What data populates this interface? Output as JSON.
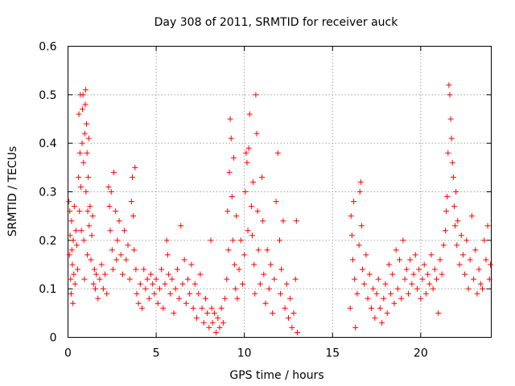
{
  "chart_data": {
    "type": "scatter",
    "title": "Day 308 of 2011, SRMTID for receiver auck",
    "xlabel": "GPS time / hours",
    "ylabel": "SRMTID / TECUs",
    "xlim": [
      0,
      24
    ],
    "ylim": [
      0,
      0.6
    ],
    "x_ticks": [
      0,
      5,
      10,
      15,
      20
    ],
    "x_tick_labels": [
      "0",
      "5",
      "10",
      "15",
      "20"
    ],
    "y_ticks": [
      0,
      0.1,
      0.2,
      0.3,
      0.4,
      0.5,
      0.6
    ],
    "y_tick_labels": [
      "0",
      "0.1",
      "0.2",
      "0.3",
      "0.4",
      "0.5",
      "0.6"
    ],
    "grid": true,
    "marker": "plus",
    "color": "#ff0000",
    "series": [
      {
        "name": "SRMTID",
        "points": [
          [
            0.05,
            0.28
          ],
          [
            0.08,
            0.17
          ],
          [
            0.1,
            0.26
          ],
          [
            0.12,
            0.21
          ],
          [
            0.15,
            0.12
          ],
          [
            0.18,
            0.09
          ],
          [
            0.2,
            0.24
          ],
          [
            0.22,
            0.18
          ],
          [
            0.25,
            0.15
          ],
          [
            0.28,
            0.07
          ],
          [
            0.3,
            0.2
          ],
          [
            0.33,
            0.13
          ],
          [
            0.36,
            0.27
          ],
          [
            0.4,
            0.11
          ],
          [
            0.45,
            0.22
          ],
          [
            0.5,
            0.19
          ],
          [
            0.55,
            0.14
          ],
          [
            0.6,
            0.33
          ],
          [
            0.62,
            0.46
          ],
          [
            0.65,
            0.26
          ],
          [
            0.68,
            0.38
          ],
          [
            0.7,
            0.5
          ],
          [
            0.73,
            0.31
          ],
          [
            0.76,
            0.22
          ],
          [
            0.8,
            0.4
          ],
          [
            0.82,
            0.47
          ],
          [
            0.85,
            0.5
          ],
          [
            0.88,
            0.36
          ],
          [
            0.9,
            0.2
          ],
          [
            0.93,
            0.12
          ],
          [
            0.95,
            0.42
          ],
          [
            0.98,
            0.48
          ],
          [
            1.0,
            0.51
          ],
          [
            1.02,
            0.3
          ],
          [
            1.05,
            0.44
          ],
          [
            1.08,
            0.38
          ],
          [
            1.1,
            0.17
          ],
          [
            1.12,
            0.26
          ],
          [
            1.15,
            0.33
          ],
          [
            1.18,
            0.41
          ],
          [
            1.2,
            0.23
          ],
          [
            1.25,
            0.27
          ],
          [
            1.3,
            0.16
          ],
          [
            1.35,
            0.21
          ],
          [
            1.4,
            0.25
          ],
          [
            1.45,
            0.11
          ],
          [
            1.5,
            0.14
          ],
          [
            1.55,
            0.1
          ],
          [
            1.6,
            0.13
          ],
          [
            1.7,
            0.08
          ],
          [
            1.8,
            0.12
          ],
          [
            1.9,
            0.15
          ],
          [
            2.0,
            0.1
          ],
          [
            2.1,
            0.13
          ],
          [
            2.2,
            0.09
          ],
          [
            2.3,
            0.31
          ],
          [
            2.35,
            0.27
          ],
          [
            2.4,
            0.22
          ],
          [
            2.45,
            0.3
          ],
          [
            2.5,
            0.18
          ],
          [
            2.55,
            0.14
          ],
          [
            2.6,
            0.34
          ],
          [
            2.7,
            0.26
          ],
          [
            2.75,
            0.16
          ],
          [
            2.8,
            0.2
          ],
          [
            2.9,
            0.24
          ],
          [
            3.0,
            0.17
          ],
          [
            3.1,
            0.13
          ],
          [
            3.2,
            0.22
          ],
          [
            3.3,
            0.16
          ],
          [
            3.4,
            0.19
          ],
          [
            3.5,
            0.12
          ],
          [
            3.6,
            0.28
          ],
          [
            3.65,
            0.33
          ],
          [
            3.7,
            0.25
          ],
          [
            3.75,
            0.18
          ],
          [
            3.8,
            0.35
          ],
          [
            3.85,
            0.14
          ],
          [
            3.9,
            0.09
          ],
          [
            4.0,
            0.07
          ],
          [
            4.1,
            0.11
          ],
          [
            4.2,
            0.06
          ],
          [
            4.3,
            0.14
          ],
          [
            4.4,
            0.1
          ],
          [
            4.5,
            0.12
          ],
          [
            4.6,
            0.08
          ],
          [
            4.7,
            0.13
          ],
          [
            4.8,
            0.11
          ],
          [
            4.9,
            0.09
          ],
          [
            5.0,
            0.12
          ],
          [
            5.1,
            0.07
          ],
          [
            5.2,
            0.1
          ],
          [
            5.3,
            0.14
          ],
          [
            5.4,
            0.06
          ],
          [
            5.5,
            0.11
          ],
          [
            5.6,
            0.2
          ],
          [
            5.65,
            0.17
          ],
          [
            5.7,
            0.13
          ],
          [
            5.8,
            0.09
          ],
          [
            5.9,
            0.12
          ],
          [
            6.0,
            0.05
          ],
          [
            6.1,
            0.1
          ],
          [
            6.2,
            0.14
          ],
          [
            6.3,
            0.08
          ],
          [
            6.4,
            0.23
          ],
          [
            6.5,
            0.11
          ],
          [
            6.6,
            0.16
          ],
          [
            6.7,
            0.07
          ],
          [
            6.8,
            0.12
          ],
          [
            6.9,
            0.09
          ],
          [
            7.0,
            0.15
          ],
          [
            7.1,
            0.06
          ],
          [
            7.2,
            0.11
          ],
          [
            7.3,
            0.04
          ],
          [
            7.4,
            0.09
          ],
          [
            7.5,
            0.13
          ],
          [
            7.6,
            0.06
          ],
          [
            7.7,
            0.03
          ],
          [
            7.8,
            0.08
          ],
          [
            7.9,
            0.05
          ],
          [
            8.0,
            0.02
          ],
          [
            8.1,
            0.2
          ],
          [
            8.15,
            0.06
          ],
          [
            8.2,
            0.03
          ],
          [
            8.3,
            0.05
          ],
          [
            8.4,
            0.01
          ],
          [
            8.5,
            0.04
          ],
          [
            8.6,
            0.02
          ],
          [
            8.7,
            0.06
          ],
          [
            8.8,
            0.03
          ],
          [
            8.9,
            0.08
          ],
          [
            9.0,
            0.12
          ],
          [
            9.05,
            0.26
          ],
          [
            9.1,
            0.18
          ],
          [
            9.15,
            0.34
          ],
          [
            9.2,
            0.45
          ],
          [
            9.25,
            0.41
          ],
          [
            9.3,
            0.29
          ],
          [
            9.35,
            0.2
          ],
          [
            9.4,
            0.37
          ],
          [
            9.45,
            0.15
          ],
          [
            9.5,
            0.1
          ],
          [
            9.55,
            0.25
          ],
          [
            9.6,
            0.08
          ],
          [
            9.7,
            0.14
          ],
          [
            9.8,
            0.2
          ],
          [
            9.9,
            0.11
          ],
          [
            10.0,
            0.17
          ],
          [
            10.05,
            0.3
          ],
          [
            10.1,
            0.38
          ],
          [
            10.15,
            0.36
          ],
          [
            10.2,
            0.22
          ],
          [
            10.25,
            0.39
          ],
          [
            10.3,
            0.46
          ],
          [
            10.4,
            0.27
          ],
          [
            10.45,
            0.21
          ],
          [
            10.5,
            0.32
          ],
          [
            10.55,
            0.15
          ],
          [
            10.6,
            0.09
          ],
          [
            10.65,
            0.5
          ],
          [
            10.7,
            0.42
          ],
          [
            10.75,
            0.26
          ],
          [
            10.8,
            0.18
          ],
          [
            10.9,
            0.11
          ],
          [
            11.0,
            0.33
          ],
          [
            11.05,
            0.24
          ],
          [
            11.1,
            0.13
          ],
          [
            11.2,
            0.07
          ],
          [
            11.3,
            0.18
          ],
          [
            11.4,
            0.1
          ],
          [
            11.5,
            0.15
          ],
          [
            11.6,
            0.05
          ],
          [
            11.7,
            0.12
          ],
          [
            11.8,
            0.28
          ],
          [
            11.9,
            0.38
          ],
          [
            12.0,
            0.2
          ],
          [
            12.05,
            0.09
          ],
          [
            12.1,
            0.14
          ],
          [
            12.2,
            0.24
          ],
          [
            12.3,
            0.06
          ],
          [
            12.4,
            0.11
          ],
          [
            12.5,
            0.04
          ],
          [
            12.6,
            0.08
          ],
          [
            12.7,
            0.02
          ],
          [
            12.8,
            0.05
          ],
          [
            12.9,
            0.12
          ],
          [
            12.95,
            0.24
          ],
          [
            13.0,
            0.01
          ],
          [
            16.0,
            0.06
          ],
          [
            16.05,
            0.25
          ],
          [
            16.1,
            0.21
          ],
          [
            16.15,
            0.16
          ],
          [
            16.2,
            0.28
          ],
          [
            16.25,
            0.12
          ],
          [
            16.3,
            0.02
          ],
          [
            16.4,
            0.09
          ],
          [
            16.5,
            0.19
          ],
          [
            16.55,
            0.3
          ],
          [
            16.6,
            0.32
          ],
          [
            16.65,
            0.23
          ],
          [
            16.7,
            0.14
          ],
          [
            16.8,
            0.11
          ],
          [
            16.9,
            0.17
          ],
          [
            17.0,
            0.08
          ],
          [
            17.1,
            0.13
          ],
          [
            17.2,
            0.06
          ],
          [
            17.3,
            0.1
          ],
          [
            17.4,
            0.04
          ],
          [
            17.5,
            0.09
          ],
          [
            17.6,
            0.12
          ],
          [
            17.7,
            0.06
          ],
          [
            17.8,
            0.03
          ],
          [
            17.9,
            0.08
          ],
          [
            18.0,
            0.11
          ],
          [
            18.1,
            0.05
          ],
          [
            18.2,
            0.15
          ],
          [
            18.3,
            0.09
          ],
          [
            18.4,
            0.13
          ],
          [
            18.5,
            0.07
          ],
          [
            18.6,
            0.18
          ],
          [
            18.7,
            0.1
          ],
          [
            18.8,
            0.16
          ],
          [
            18.9,
            0.08
          ],
          [
            19.0,
            0.2
          ],
          [
            19.1,
            0.12
          ],
          [
            19.2,
            0.14
          ],
          [
            19.3,
            0.09
          ],
          [
            19.4,
            0.16
          ],
          [
            19.5,
            0.11
          ],
          [
            19.6,
            0.13
          ],
          [
            19.7,
            0.17
          ],
          [
            19.8,
            0.1
          ],
          [
            19.9,
            0.14
          ],
          [
            20.0,
            0.08
          ],
          [
            20.1,
            0.12
          ],
          [
            20.2,
            0.15
          ],
          [
            20.3,
            0.09
          ],
          [
            20.4,
            0.13
          ],
          [
            20.5,
            0.11
          ],
          [
            20.6,
            0.17
          ],
          [
            20.7,
            0.1
          ],
          [
            20.8,
            0.14
          ],
          [
            20.9,
            0.12
          ],
          [
            21.0,
            0.05
          ],
          [
            21.1,
            0.16
          ],
          [
            21.2,
            0.13
          ],
          [
            21.3,
            0.19
          ],
          [
            21.4,
            0.22
          ],
          [
            21.45,
            0.26
          ],
          [
            21.5,
            0.29
          ],
          [
            21.55,
            0.38
          ],
          [
            21.6,
            0.52
          ],
          [
            21.65,
            0.5
          ],
          [
            21.7,
            0.45
          ],
          [
            21.75,
            0.41
          ],
          [
            21.8,
            0.36
          ],
          [
            21.85,
            0.33
          ],
          [
            21.9,
            0.27
          ],
          [
            21.95,
            0.23
          ],
          [
            22.0,
            0.3
          ],
          [
            22.05,
            0.19
          ],
          [
            22.1,
            0.24
          ],
          [
            22.2,
            0.15
          ],
          [
            22.3,
            0.21
          ],
          [
            22.4,
            0.17
          ],
          [
            22.5,
            0.13
          ],
          [
            22.6,
            0.2
          ],
          [
            22.7,
            0.1
          ],
          [
            22.8,
            0.16
          ],
          [
            22.9,
            0.25
          ],
          [
            23.0,
            0.12
          ],
          [
            23.1,
            0.18
          ],
          [
            23.2,
            0.09
          ],
          [
            23.3,
            0.14
          ],
          [
            23.4,
            0.11
          ],
          [
            23.5,
            0.1
          ],
          [
            23.6,
            0.2
          ],
          [
            23.7,
            0.16
          ],
          [
            23.8,
            0.23
          ],
          [
            23.9,
            0.12
          ],
          [
            23.95,
            0.15
          ]
        ]
      }
    ]
  }
}
